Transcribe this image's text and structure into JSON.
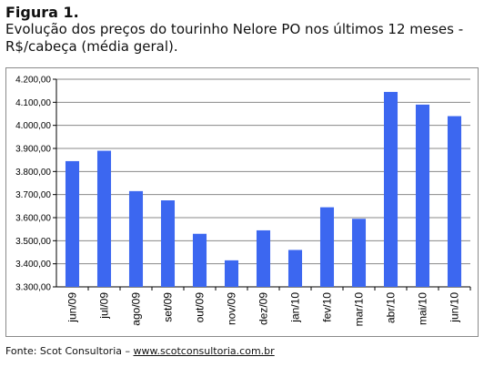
{
  "header": {
    "figure_label": "Figura 1.",
    "caption_line1": "Evolução dos preços do tourinho Nelore PO nos últimos 12 meses -",
    "caption_line2": "R$/cabeça (média geral)."
  },
  "footer": {
    "source_prefix": "Fonte: Scot Consultoria – ",
    "source_link": "www.scotconsultoria.com.br"
  },
  "colors": {
    "bar": "#3c67f0",
    "axis": "#000000",
    "grid": "#888888"
  },
  "chart_data": {
    "type": "bar",
    "title": "",
    "xlabel": "",
    "ylabel": "",
    "categories": [
      "jun/09",
      "jul/09",
      "ago/09",
      "set/09",
      "out/09",
      "nov/09",
      "dez/09",
      "jan/10",
      "fev/10",
      "mar/10",
      "abr/10",
      "mai/10",
      "jun/10"
    ],
    "values": [
      3845,
      3890,
      3715,
      3675,
      3530,
      3415,
      3545,
      3460,
      3645,
      3595,
      4145,
      4090,
      4040
    ],
    "ylim": [
      3300,
      4200
    ],
    "yticks": [
      3300,
      3400,
      3500,
      3600,
      3700,
      3800,
      3900,
      4000,
      4100,
      4200
    ],
    "ytick_labels": [
      "3.300,00",
      "3.400,00",
      "3.500,00",
      "3.600,00",
      "3.700,00",
      "3.800,00",
      "3.900,00",
      "4.000,00",
      "4.100,00",
      "4.200,00"
    ],
    "grid": true,
    "legend": false
  }
}
